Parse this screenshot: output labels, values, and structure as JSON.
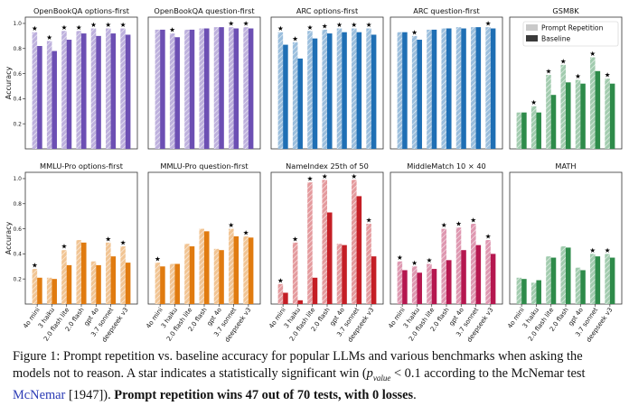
{
  "figure": {
    "ylabel": "Accuracy",
    "models": [
      "4o mini",
      "3 haiku",
      "2.0 flash lite",
      "2.0 flash",
      "gpt 4o",
      "3.7 sonnet",
      "deepseek v3"
    ],
    "legend": {
      "repetition": "Prompt Repetition",
      "baseline": "Baseline"
    },
    "yticks": [
      0.2,
      0.4,
      0.6,
      0.8,
      1.0
    ]
  },
  "chart_data": [
    {
      "type": "bar",
      "title": "OpenBookQA options-first",
      "color": "#6c4fb3",
      "ylim": [
        0,
        1.05
      ],
      "categories": [
        "4o mini",
        "3 haiku",
        "2.0 flash lite",
        "2.0 flash",
        "gpt 4o",
        "3.7 sonnet",
        "deepseek v3"
      ],
      "series": [
        {
          "name": "Prompt Repetition",
          "values": [
            0.93,
            0.86,
            0.94,
            0.94,
            0.96,
            0.96,
            0.96
          ]
        },
        {
          "name": "Baseline",
          "values": [
            0.82,
            0.78,
            0.87,
            0.92,
            0.9,
            0.92,
            0.91
          ]
        }
      ],
      "significant": [
        true,
        true,
        true,
        true,
        true,
        true,
        true
      ]
    },
    {
      "type": "bar",
      "title": "OpenBookQA question-first",
      "color": "#6c4fb3",
      "ylim": [
        0,
        1.05
      ],
      "categories": [
        "4o mini",
        "3 haiku",
        "2.0 flash lite",
        "2.0 flash",
        "gpt 4o",
        "3.7 sonnet",
        "deepseek v3"
      ],
      "series": [
        {
          "name": "Prompt Repetition",
          "values": [
            0.95,
            0.92,
            0.95,
            0.96,
            0.97,
            0.97,
            0.97
          ]
        },
        {
          "name": "Baseline",
          "values": [
            0.95,
            0.89,
            0.95,
            0.96,
            0.97,
            0.96,
            0.96
          ]
        }
      ],
      "significant": [
        false,
        true,
        false,
        false,
        false,
        true,
        true
      ]
    },
    {
      "type": "bar",
      "title": "ARC options-first",
      "color": "#1f6fb4",
      "ylim": [
        0,
        1.05
      ],
      "categories": [
        "4o mini",
        "3 haiku",
        "2.0 flash lite",
        "2.0 flash",
        "gpt 4o",
        "3.7 sonnet",
        "deepseek v3"
      ],
      "series": [
        {
          "name": "Prompt Repetition",
          "values": [
            0.93,
            0.85,
            0.94,
            0.95,
            0.96,
            0.96,
            0.96
          ]
        },
        {
          "name": "Baseline",
          "values": [
            0.83,
            0.72,
            0.88,
            0.92,
            0.93,
            0.93,
            0.91
          ]
        }
      ],
      "significant": [
        true,
        true,
        true,
        true,
        true,
        true,
        true
      ]
    },
    {
      "type": "bar",
      "title": "ARC question-first",
      "color": "#1f6fb4",
      "ylim": [
        0,
        1.05
      ],
      "categories": [
        "4o mini",
        "3 haiku",
        "2.0 flash lite",
        "2.0 flash",
        "gpt 4o",
        "3.7 sonnet",
        "deepseek v3"
      ],
      "series": [
        {
          "name": "Prompt Repetition",
          "values": [
            0.93,
            0.9,
            0.95,
            0.96,
            0.97,
            0.97,
            0.97
          ]
        },
        {
          "name": "Baseline",
          "values": [
            0.93,
            0.87,
            0.95,
            0.96,
            0.96,
            0.97,
            0.96
          ]
        }
      ],
      "significant": [
        false,
        true,
        false,
        false,
        false,
        false,
        true
      ]
    },
    {
      "type": "bar",
      "title": "GSM8K",
      "color": "#2e8b4a",
      "ylim": [
        0,
        1.05
      ],
      "categories": [
        "4o mini",
        "3 haiku",
        "2.0 flash lite",
        "2.0 flash",
        "gpt 4o",
        "3.7 sonnet",
        "deepseek v3"
      ],
      "series": [
        {
          "name": "Prompt Repetition",
          "values": [
            0.29,
            0.34,
            0.59,
            0.67,
            0.55,
            0.73,
            0.56
          ]
        },
        {
          "name": "Baseline",
          "values": [
            0.29,
            0.29,
            0.43,
            0.53,
            0.52,
            0.62,
            0.52
          ]
        }
      ],
      "significant": [
        false,
        true,
        true,
        true,
        true,
        true,
        true
      ],
      "legend_position": "top-right"
    },
    {
      "type": "bar",
      "title": "MMLU-Pro options-first",
      "color": "#e07b10",
      "ylim": [
        0,
        1.05
      ],
      "categories": [
        "4o mini",
        "3 haiku",
        "2.0 flash lite",
        "2.0 flash",
        "gpt 4o",
        "3.7 sonnet",
        "deepseek v3"
      ],
      "series": [
        {
          "name": "Prompt Repetition",
          "values": [
            0.28,
            0.21,
            0.43,
            0.51,
            0.34,
            0.49,
            0.46
          ]
        },
        {
          "name": "Baseline",
          "values": [
            0.21,
            0.2,
            0.31,
            0.49,
            0.31,
            0.38,
            0.33
          ]
        }
      ],
      "significant": [
        true,
        false,
        true,
        false,
        false,
        true,
        true
      ]
    },
    {
      "type": "bar",
      "title": "MMLU-Pro question-first",
      "color": "#e07b10",
      "ylim": [
        0,
        1.05
      ],
      "categories": [
        "4o mini",
        "3 haiku",
        "2.0 flash lite",
        "2.0 flash",
        "gpt 4o",
        "3.7 sonnet",
        "deepseek v3"
      ],
      "series": [
        {
          "name": "Prompt Repetition",
          "values": [
            0.33,
            0.32,
            0.48,
            0.6,
            0.44,
            0.6,
            0.54
          ]
        },
        {
          "name": "Baseline",
          "values": [
            0.3,
            0.32,
            0.46,
            0.58,
            0.43,
            0.54,
            0.53
          ]
        }
      ],
      "significant": [
        true,
        false,
        false,
        false,
        false,
        true,
        true
      ]
    },
    {
      "type": "bar",
      "title": "NameIndex 25th of 50",
      "color": "#c41e25",
      "ylim": [
        0,
        1.05
      ],
      "categories": [
        "4o mini",
        "3 haiku",
        "2.0 flash lite",
        "2.0 flash",
        "gpt 4o",
        "3.7 sonnet",
        "deepseek v3"
      ],
      "series": [
        {
          "name": "Prompt Repetition",
          "values": [
            0.16,
            0.49,
            0.97,
            0.99,
            0.48,
            0.99,
            0.64
          ]
        },
        {
          "name": "Baseline",
          "values": [
            0.09,
            0.03,
            0.21,
            0.73,
            0.47,
            0.86,
            0.38
          ]
        }
      ],
      "significant": [
        true,
        true,
        true,
        true,
        false,
        true,
        true
      ]
    },
    {
      "type": "bar",
      "title": "MiddleMatch 10 × 40",
      "color": "#b5174f",
      "ylim": [
        0,
        1.05
      ],
      "categories": [
        "4o mini",
        "3 haiku",
        "2.0 flash lite",
        "2.0 flash",
        "gpt 4o",
        "3.7 sonnet",
        "deepseek v3"
      ],
      "series": [
        {
          "name": "Prompt Repetition",
          "values": [
            0.34,
            0.3,
            0.32,
            0.6,
            0.61,
            0.64,
            0.51
          ]
        },
        {
          "name": "Baseline",
          "values": [
            0.27,
            0.25,
            0.28,
            0.35,
            0.43,
            0.47,
            0.4
          ]
        }
      ],
      "significant": [
        true,
        true,
        true,
        true,
        true,
        true,
        true
      ]
    },
    {
      "type": "bar",
      "title": "MATH",
      "color": "#2e8b4a",
      "ylim": [
        0,
        1.05
      ],
      "categories": [
        "4o mini",
        "3 haiku",
        "2.0 flash lite",
        "2.0 flash",
        "gpt 4o",
        "3.7 sonnet",
        "deepseek v3"
      ],
      "series": [
        {
          "name": "Prompt Repetition",
          "values": [
            0.21,
            0.17,
            0.38,
            0.46,
            0.29,
            0.4,
            0.4
          ]
        },
        {
          "name": "Baseline",
          "values": [
            0.2,
            0.19,
            0.37,
            0.45,
            0.27,
            0.38,
            0.37
          ]
        }
      ],
      "significant": [
        false,
        false,
        false,
        false,
        false,
        true,
        true
      ]
    }
  ],
  "caption": {
    "p1": "Figure 1: Prompt repetition vs. baseline accuracy for popular LLMs and various benchmarks when asking the models not to reason. A star indicates a statistically significant win (",
    "math_var": "p",
    "math_sub": "value",
    "math_rest": " < 0.1",
    "p2": " according to the McNemar test ",
    "link": "McNemar",
    "p3": " [1947]). ",
    "bold": "Prompt repetition wins 47 out of 70 tests, with 0 losses",
    "p4": "."
  }
}
